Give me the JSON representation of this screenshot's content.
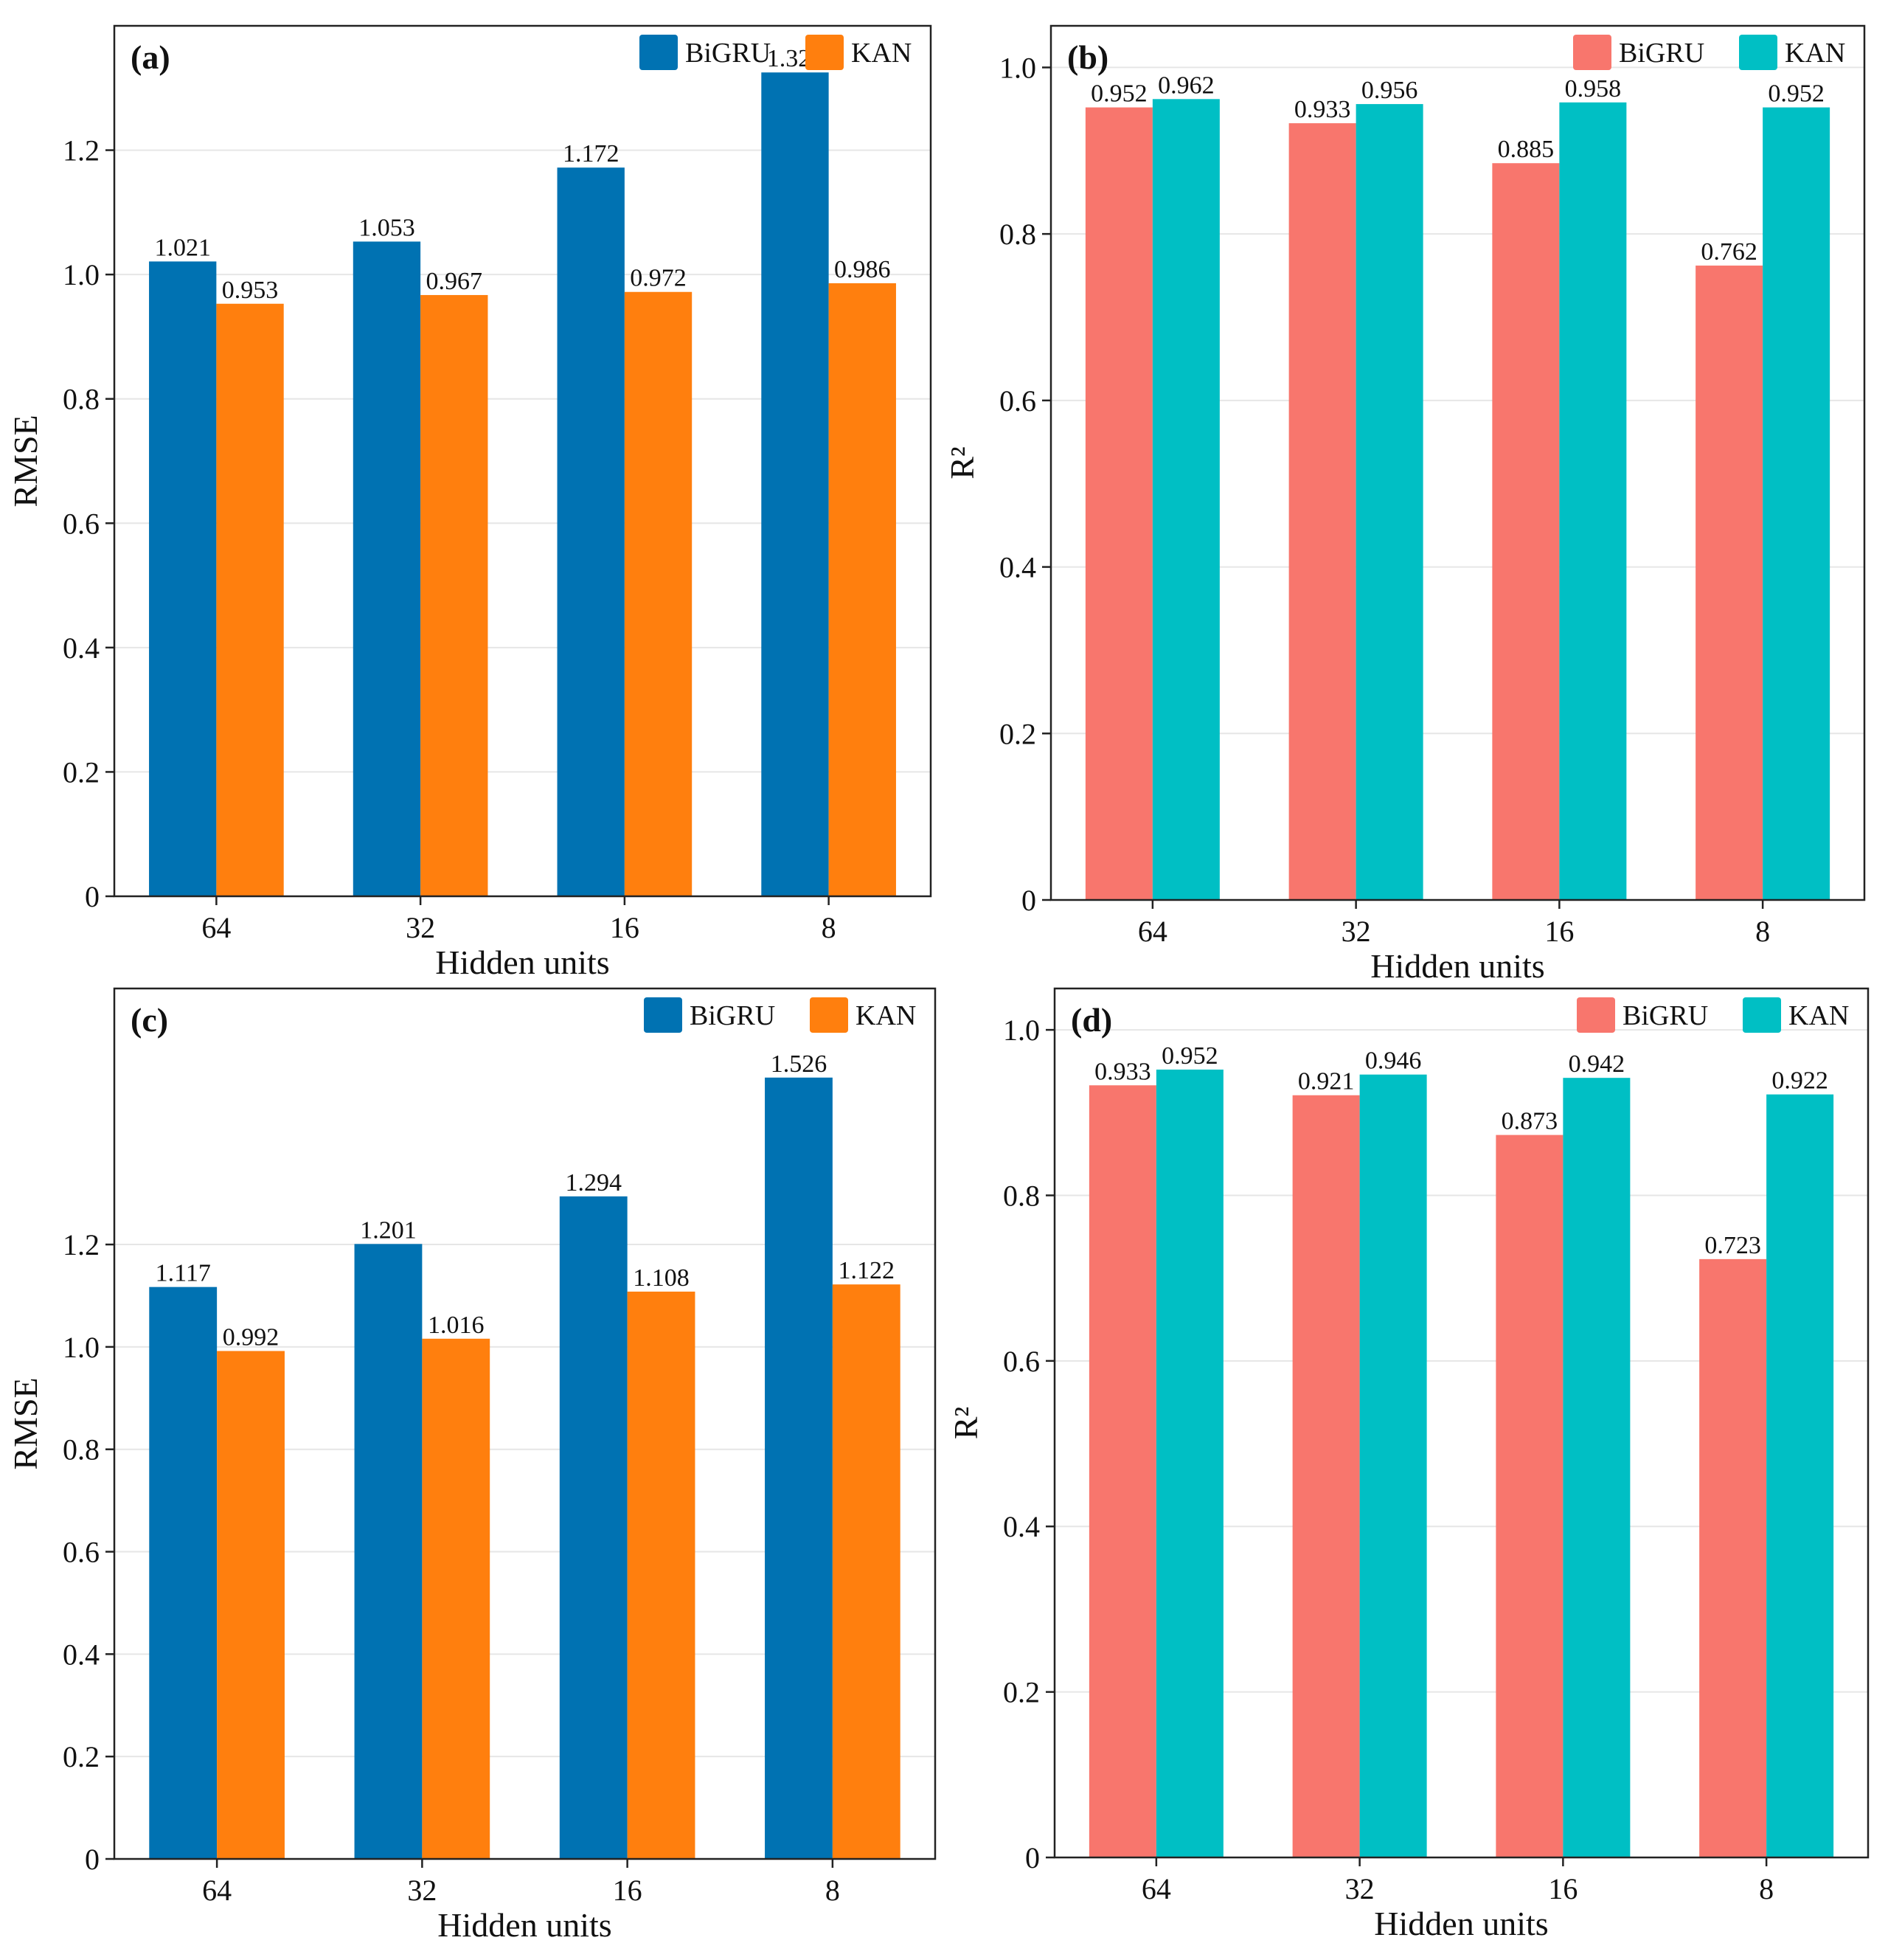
{
  "colors": {
    "rmse_bigru": "#0072b2",
    "rmse_kan": "#ff7f0e",
    "r2_bigru": "#f8766d",
    "r2_kan": "#00bfc4",
    "gridline": "#e6e6e6",
    "frame": "#222222"
  },
  "chart_data": [
    {
      "id": "a",
      "type": "bar",
      "panel_label": "(a)",
      "xlabel": "Hidden units",
      "ylabel": "RMSE",
      "categories": [
        "64",
        "32",
        "16",
        "8"
      ],
      "ylim": [
        0,
        1.4
      ],
      "yticks": [
        0,
        0.2,
        0.4,
        0.6,
        0.8,
        1.0,
        1.2
      ],
      "ytick_labels": [
        "0",
        "0.2",
        "0.4",
        "0.6",
        "0.8",
        "1.0",
        "1.2"
      ],
      "legend_position": "top-right",
      "grid": true,
      "series": [
        {
          "name": "BiGRU",
          "color": "#0072b2",
          "values": [
            1.021,
            1.053,
            1.172,
            1.325
          ],
          "labels": [
            "1.021",
            "1.053",
            "1.172",
            "1.325"
          ]
        },
        {
          "name": "KAN",
          "color": "#ff7f0e",
          "values": [
            0.953,
            0.967,
            0.972,
            0.986
          ],
          "labels": [
            "0.953",
            "0.967",
            "0.972",
            "0.986"
          ]
        }
      ]
    },
    {
      "id": "b",
      "type": "bar",
      "panel_label": "(b)",
      "xlabel": "Hidden units",
      "ylabel": "R²",
      "categories": [
        "64",
        "32",
        "16",
        "8"
      ],
      "ylim": [
        0,
        1.05
      ],
      "yticks": [
        0,
        0.2,
        0.4,
        0.6,
        0.8,
        1.0
      ],
      "ytick_labels": [
        "0",
        "0.2",
        "0.4",
        "0.6",
        "0.8",
        "1.0"
      ],
      "legend_position": "top-right",
      "grid": true,
      "series": [
        {
          "name": "BiGRU",
          "color": "#f8766d",
          "values": [
            0.952,
            0.933,
            0.885,
            0.762
          ],
          "labels": [
            "0.952",
            "0.933",
            "0.885",
            "0.762"
          ]
        },
        {
          "name": "KAN",
          "color": "#00bfc4",
          "values": [
            0.962,
            0.956,
            0.958,
            0.952
          ],
          "labels": [
            "0.962",
            "0.956",
            "0.958",
            "0.952"
          ]
        }
      ]
    },
    {
      "id": "c",
      "type": "bar",
      "panel_label": "(c)",
      "xlabel": "Hidden units",
      "ylabel": "RMSE",
      "categories": [
        "64",
        "32",
        "16",
        "8"
      ],
      "ylim": [
        0,
        1.7
      ],
      "yticks": [
        0,
        0.2,
        0.4,
        0.6,
        0.8,
        1.0,
        1.2
      ],
      "ytick_labels": [
        "0",
        "0.2",
        "0.4",
        "0.6",
        "0.8",
        "1.0",
        "1.2"
      ],
      "legend_position": "top-right",
      "grid": true,
      "series": [
        {
          "name": "BiGRU",
          "color": "#0072b2",
          "values": [
            1.117,
            1.201,
            1.294,
            1.526
          ],
          "labels": [
            "1.117",
            "1.201",
            "1.294",
            "1.526"
          ]
        },
        {
          "name": "KAN",
          "color": "#ff7f0e",
          "values": [
            0.992,
            1.016,
            1.108,
            1.122
          ],
          "labels": [
            "0.992",
            "1.016",
            "1.108",
            "1.122"
          ]
        }
      ]
    },
    {
      "id": "d",
      "type": "bar",
      "panel_label": "(d)",
      "xlabel": "Hidden units",
      "ylabel": "R²",
      "categories": [
        "64",
        "32",
        "16",
        "8"
      ],
      "ylim": [
        0,
        1.05
      ],
      "yticks": [
        0,
        0.2,
        0.4,
        0.6,
        0.8,
        1.0
      ],
      "ytick_labels": [
        "0",
        "0.2",
        "0.4",
        "0.6",
        "0.8",
        "1.0"
      ],
      "legend_position": "top-right",
      "grid": true,
      "series": [
        {
          "name": "BiGRU",
          "color": "#f8766d",
          "values": [
            0.933,
            0.921,
            0.873,
            0.723
          ],
          "labels": [
            "0.933",
            "0.921",
            "0.873",
            "0.723"
          ]
        },
        {
          "name": "KAN",
          "color": "#00bfc4",
          "values": [
            0.952,
            0.946,
            0.942,
            0.922
          ],
          "labels": [
            "0.952",
            "0.946",
            "0.942",
            "0.922"
          ]
        }
      ]
    }
  ]
}
